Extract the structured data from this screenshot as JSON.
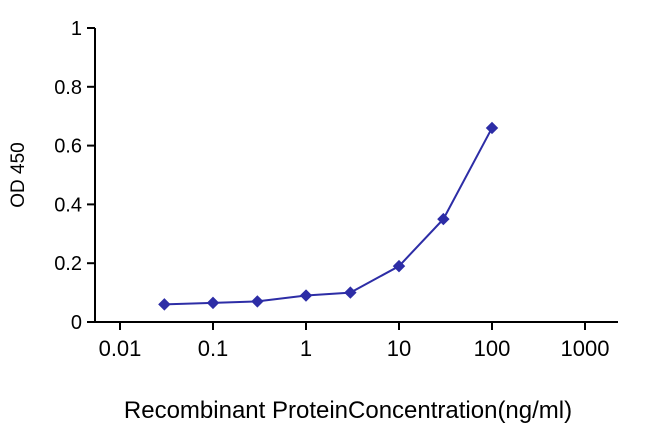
{
  "chart_data": {
    "type": "line",
    "title": "",
    "xlabel": "Recombinant ProteinConcentration(ng/ml)",
    "ylabel": "OD 450",
    "x_scale": "log",
    "xlim": [
      0.01,
      1000
    ],
    "ylim": [
      0,
      1
    ],
    "x_ticks": [
      "0.01",
      "0.1",
      "1",
      "10",
      "100",
      "1000"
    ],
    "x_tick_values": [
      0.01,
      0.1,
      1,
      10,
      100,
      1000
    ],
    "y_ticks": [
      "0",
      "0.2",
      "0.4",
      "0.6",
      "0.8",
      "1"
    ],
    "y_tick_values": [
      0,
      0.2,
      0.4,
      0.6,
      0.8,
      1
    ],
    "grid": false,
    "legend": false,
    "series": [
      {
        "name": "OD 450",
        "marker": "diamond",
        "color": "#2d2da6",
        "x": [
          0.03,
          0.1,
          0.3,
          1,
          3,
          10,
          30,
          100
        ],
        "y": [
          0.06,
          0.065,
          0.07,
          0.09,
          0.1,
          0.19,
          0.35,
          0.66
        ]
      }
    ]
  },
  "colors": {
    "series": "#2d2da6",
    "axis": "#000000",
    "background": "#ffffff"
  }
}
